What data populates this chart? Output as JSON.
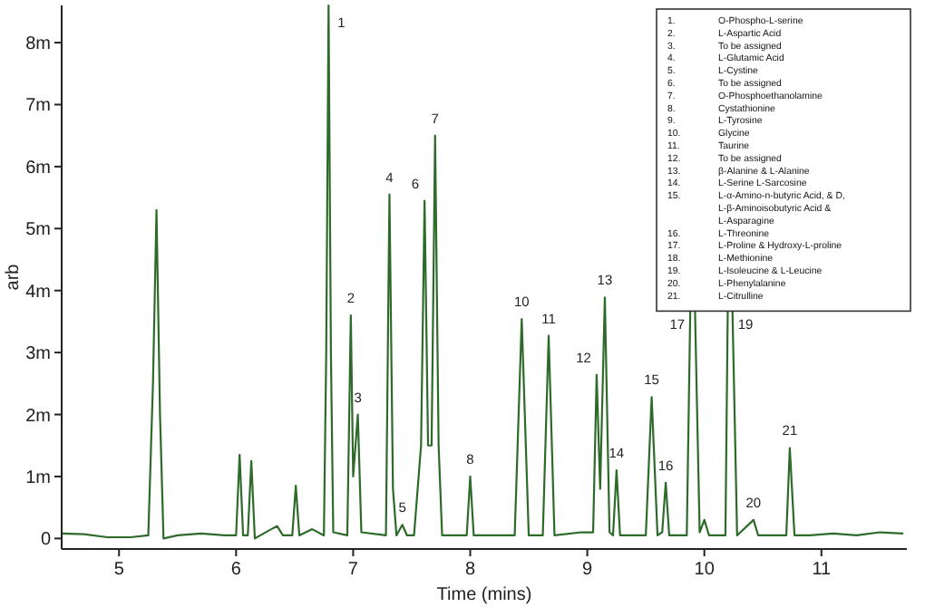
{
  "chart_data": {
    "type": "line",
    "xlabel": "Time (mins)",
    "ylabel": "arb",
    "xlim": [
      4.51,
      11.73
    ],
    "ylim": [
      -0.17,
      8.6
    ],
    "xticks": [
      5,
      6,
      7,
      8,
      9,
      10,
      11
    ],
    "yticks": [
      {
        "value": 0,
        "label": "0"
      },
      {
        "value": 1,
        "label": "1m"
      },
      {
        "value": 2,
        "label": "2m"
      },
      {
        "value": 3,
        "label": "3m"
      },
      {
        "value": 4,
        "label": "4m"
      },
      {
        "value": 5,
        "label": "5m"
      },
      {
        "value": 6,
        "label": "6m"
      },
      {
        "value": 7,
        "label": "7m"
      },
      {
        "value": 8,
        "label": "8m"
      }
    ],
    "grid": false,
    "marker": "none",
    "line_style": "solid",
    "series": [
      {
        "color": "#2e6b2a",
        "x": [
          4.51,
          4.7,
          4.9,
          5.1,
          5.25,
          5.29,
          5.32,
          5.35,
          5.38,
          5.5,
          5.7,
          5.9,
          6.0,
          6.03,
          6.06,
          6.1,
          6.13,
          6.16,
          6.3,
          6.35,
          6.4,
          6.48,
          6.51,
          6.54,
          6.65,
          6.75,
          6.77,
          6.79,
          6.81,
          6.83,
          6.95,
          6.98,
          7.0,
          7.04,
          7.07,
          7.28,
          7.31,
          7.34,
          7.37,
          7.42,
          7.46,
          7.52,
          7.58,
          7.61,
          7.64,
          7.67,
          7.7,
          7.73,
          7.76,
          7.9,
          7.97,
          8.0,
          8.03,
          8.38,
          8.44,
          8.5,
          8.62,
          8.67,
          8.72,
          8.95,
          9.05,
          9.08,
          9.11,
          9.15,
          9.19,
          9.22,
          9.25,
          9.28,
          9.5,
          9.55,
          9.6,
          9.64,
          9.67,
          9.7,
          9.85,
          9.88,
          9.9,
          9.92,
          9.96,
          10.0,
          10.04,
          10.18,
          10.2,
          10.22,
          10.24,
          10.28,
          10.42,
          10.46,
          10.7,
          10.73,
          10.77,
          10.9,
          11.1,
          11.3,
          11.5,
          11.7
        ],
        "values": [
          0.08,
          0.07,
          0.02,
          0.02,
          0.05,
          2.5,
          5.3,
          2.0,
          0.0,
          0.05,
          0.08,
          0.05,
          0.05,
          1.35,
          0.05,
          0.05,
          1.25,
          0.0,
          0.15,
          0.2,
          0.05,
          0.05,
          0.85,
          0.05,
          0.15,
          0.05,
          3,
          8.6,
          3,
          0.1,
          0.05,
          3.6,
          1.0,
          2.0,
          0.1,
          0.05,
          5.55,
          0.8,
          0.05,
          0.22,
          0.05,
          0.05,
          1.5,
          5.45,
          1.5,
          1.5,
          6.5,
          1.5,
          0.05,
          0.05,
          0.05,
          1.0,
          0.05,
          0.05,
          3.54,
          0.05,
          0.05,
          3.27,
          0.05,
          0.1,
          0.1,
          2.64,
          0.8,
          3.89,
          0.1,
          0.05,
          1.1,
          0.05,
          0.05,
          2.28,
          0.05,
          0.1,
          0.9,
          0.05,
          0.05,
          3.7,
          null,
          3.7,
          0.1,
          0.3,
          0.05,
          0.05,
          3.7,
          null,
          3.7,
          0.05,
          0.3,
          0.05,
          0.05,
          1.46,
          0.05,
          0.05,
          0.08,
          0.05,
          0.1,
          0.08
        ]
      }
    ],
    "annotations": [
      {
        "text": "1",
        "x": 6.79,
        "y": 8.6
      },
      {
        "text": "2",
        "x": 6.98,
        "y": 3.6
      },
      {
        "text": "3",
        "x": 7.04,
        "y": 2.0
      },
      {
        "text": "4",
        "x": 7.31,
        "y": 5.55
      },
      {
        "text": "5",
        "x": 7.42,
        "y": 0.22
      },
      {
        "text": "6",
        "x": 7.61,
        "y": 5.45
      },
      {
        "text": "7",
        "x": 7.7,
        "y": 6.5
      },
      {
        "text": "8",
        "x": 8.0,
        "y": 1.0
      },
      {
        "text": "10",
        "x": 8.44,
        "y": 3.54
      },
      {
        "text": "11",
        "x": 8.67,
        "y": 3.27
      },
      {
        "text": "12",
        "x": 9.08,
        "y": 2.64
      },
      {
        "text": "13",
        "x": 9.15,
        "y": 3.89
      },
      {
        "text": "14",
        "x": 9.25,
        "y": 1.1
      },
      {
        "text": "15",
        "x": 9.55,
        "y": 2.28
      },
      {
        "text": "16",
        "x": 9.67,
        "y": 0.9
      },
      {
        "text": "17",
        "x": 9.88,
        "y": 3.7
      },
      {
        "text": "19",
        "x": 10.24,
        "y": 3.7
      },
      {
        "text": "20",
        "x": 10.42,
        "y": 0.3
      },
      {
        "text": "21",
        "x": 10.73,
        "y": 1.46
      },
      "1. O-Phospho-L-serine",
      "2. L-Aspartic Acid",
      "3. To be assigned",
      "4. L-Glutamic Acid",
      "5. L-Cystine",
      "6. To be assigned",
      "7. O-Phosphoethanolamine",
      "8. Cystathionine",
      "9. L-Tyrosine",
      "10. Glycine",
      "11. Taurine",
      "12. To be assigned",
      "13. β-Alanine & L-Alanine",
      "14. L-Serine L-Sarcosine",
      "15. L-α-Amino-n-butyric Acid, & D, L-β-Aminoisobutyric Acid & L-Asparagine",
      "16. L-Threonine",
      "17. L-Proline & Hydroxy-L-proline",
      "18. L-Methionine",
      "19. L-Isoleucine & L-Leucine",
      "20. L-Phenylalanine",
      "21. L-Citrulline"
    ]
  }
}
